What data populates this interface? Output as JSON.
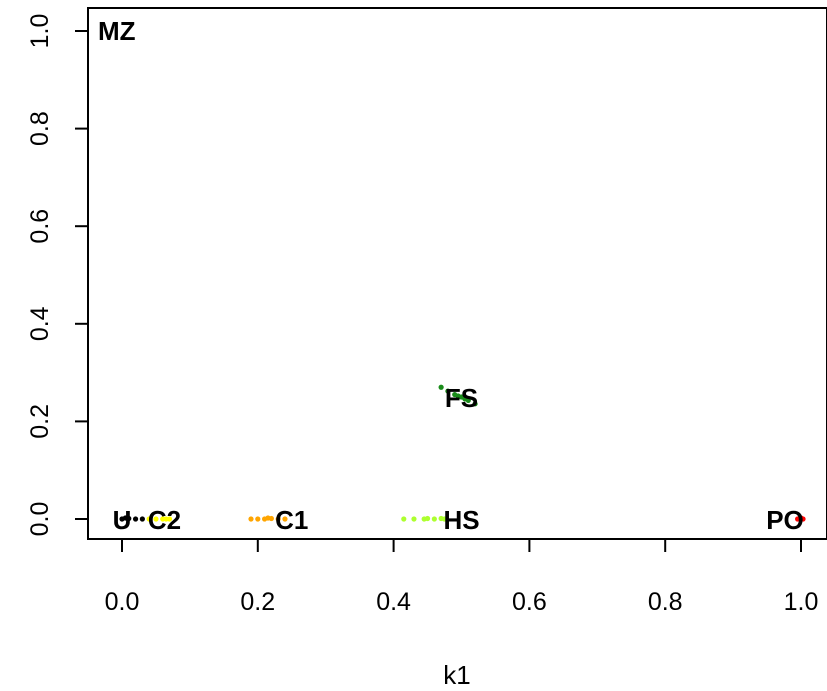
{
  "chart_data": {
    "type": "scatter",
    "title": "",
    "xlabel": "k1",
    "ylabel": "",
    "xlim": [
      -0.05,
      1.03
    ],
    "ylim": [
      -0.04,
      1.04
    ],
    "x_ticks": [
      "0.0",
      "0.2",
      "0.4",
      "0.6",
      "0.8",
      "1.0"
    ],
    "y_ticks": [
      "0.0",
      "0.2",
      "0.4",
      "0.6",
      "0.8",
      "1.0"
    ],
    "grid": false,
    "legend": "none",
    "relationships": [
      {
        "label": "MZ",
        "x": 0.0,
        "y": 1.0,
        "color": "#000000",
        "cloud": []
      },
      {
        "label": "PO",
        "x": 1.0,
        "y": 0.0,
        "color": "#ff0000",
        "cloud": [
          [
            0.995,
            0.0
          ],
          [
            1.0,
            0.002
          ],
          [
            1.003,
            0.0
          ]
        ]
      },
      {
        "label": "FS",
        "x": 0.5,
        "y": 0.25,
        "color": "#1a8c1a",
        "cloud": [
          [
            0.47,
            0.27
          ],
          [
            0.48,
            0.262
          ],
          [
            0.49,
            0.255
          ],
          [
            0.5,
            0.25
          ],
          [
            0.51,
            0.243
          ],
          [
            0.52,
            0.236
          ],
          [
            0.495,
            0.252
          ],
          [
            0.505,
            0.246
          ]
        ]
      },
      {
        "label": "HS",
        "x": 0.5,
        "y": 0.0,
        "color": "#adff2f",
        "cloud": [
          [
            0.415,
            0.0
          ],
          [
            0.43,
            0.0
          ],
          [
            0.445,
            0.0
          ],
          [
            0.46,
            0.0
          ],
          [
            0.47,
            0.001
          ],
          [
            0.475,
            0.0
          ],
          [
            0.45,
            0.001
          ]
        ]
      },
      {
        "label": "C1",
        "x": 0.25,
        "y": 0.0,
        "color": "#ffa500",
        "cloud": [
          [
            0.19,
            0.0
          ],
          [
            0.2,
            0.0
          ],
          [
            0.21,
            0.0
          ],
          [
            0.22,
            0.001
          ],
          [
            0.23,
            0.0
          ],
          [
            0.24,
            0.0
          ],
          [
            0.215,
            0.002
          ]
        ]
      },
      {
        "label": "C2",
        "x": 0.0625,
        "y": 0.0,
        "color": "#ffff00",
        "cloud": [
          [
            0.04,
            0.0
          ],
          [
            0.05,
            0.0
          ],
          [
            0.06,
            0.0
          ],
          [
            0.065,
            0.0
          ],
          [
            0.07,
            0.0
          ]
        ]
      },
      {
        "label": "U",
        "x": 0.0,
        "y": 0.0,
        "color": "#000000",
        "cloud": [
          [
            0.0,
            0.0
          ],
          [
            0.01,
            0.001
          ],
          [
            0.02,
            0.0
          ],
          [
            0.03,
            0.0
          ],
          [
            0.005,
            0.002
          ]
        ]
      }
    ]
  }
}
